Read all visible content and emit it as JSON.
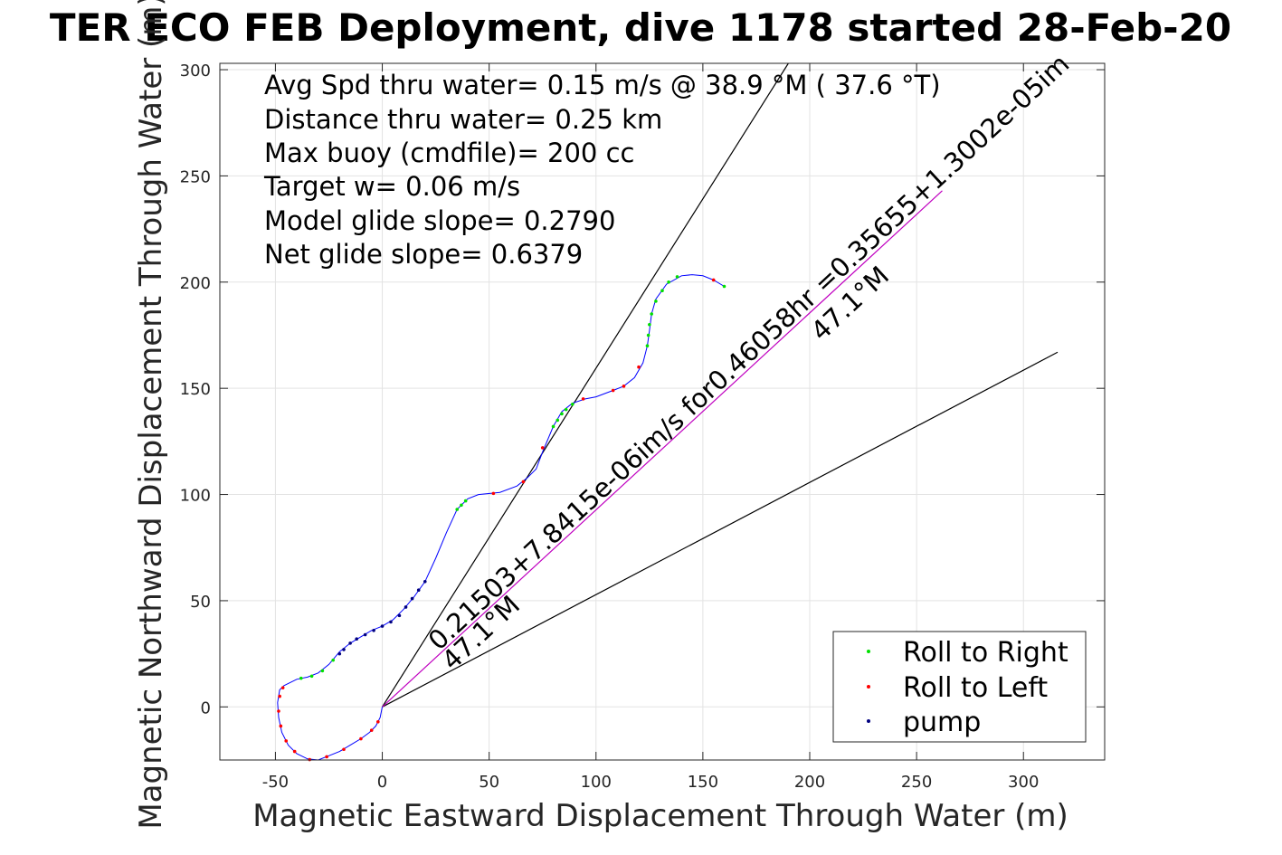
{
  "chart_data": {
    "type": "scatter",
    "title": "TER ECO FEB Deployment, dive 1178 started 28-Feb-20",
    "xlabel": "Magnetic Eastward Displacement Through Water (m)",
    "ylabel": "Magnetic Northward Displacement Through Water (m)",
    "xlim": [
      -76,
      338
    ],
    "ylim": [
      -25,
      303
    ],
    "xticks": [
      -50,
      0,
      50,
      100,
      150,
      200,
      250,
      300
    ],
    "yticks": [
      0,
      50,
      100,
      150,
      200,
      250,
      300
    ],
    "xtick_labels": [
      "-50",
      "0",
      "50",
      "100",
      "150",
      "200",
      "250",
      "300"
    ],
    "ytick_labels": [
      "0",
      "50",
      "100",
      "150",
      "200",
      "250",
      "300"
    ],
    "grid": true,
    "annotations": [
      "Avg Spd thru water=  0.15 m/s @  38.9 °M ( 37.6 °T)",
      "Distance thru water=  0.25 km",
      "Max buoy (cmdfile)= 200 cc",
      "Target w= 0.06 m/s",
      "Model glide slope= 0.2790",
      "Net glide slope= 0.6379"
    ],
    "rotated_labels": {
      "current": "0.21503+7.8415e-06im/s for0.46058hr =0.35655+1.3002e-05im",
      "heading_near": "47.1°M",
      "heading_far": "47.1°M"
    },
    "legend": {
      "location": "bottom-right",
      "entries": [
        {
          "label": "Roll to Right",
          "color": "#00e000"
        },
        {
          "label": "Roll to Left",
          "color": "#ff0000"
        },
        {
          "label": "pump",
          "color": "#000080"
        }
      ]
    },
    "track": [
      [
        0,
        0
      ],
      [
        -1,
        -5
      ],
      [
        -3,
        -9
      ],
      [
        -6,
        -12
      ],
      [
        -10,
        -15
      ],
      [
        -15,
        -18
      ],
      [
        -20,
        -21
      ],
      [
        -25,
        -23
      ],
      [
        -30,
        -25
      ],
      [
        -35,
        -24.5
      ],
      [
        -40,
        -22
      ],
      [
        -44,
        -18
      ],
      [
        -47,
        -12
      ],
      [
        -48.5,
        -5
      ],
      [
        -49,
        2
      ],
      [
        -48,
        8
      ],
      [
        -46,
        10
      ],
      [
        -40,
        13
      ],
      [
        -35,
        14
      ],
      [
        -30,
        16
      ],
      [
        -25,
        20
      ],
      [
        -20,
        26
      ],
      [
        -15,
        30
      ],
      [
        -10,
        33
      ],
      [
        -5,
        36
      ],
      [
        0,
        38
      ],
      [
        5,
        41
      ],
      [
        10,
        46
      ],
      [
        15,
        52
      ],
      [
        20,
        59
      ],
      [
        25,
        70
      ],
      [
        30,
        82
      ],
      [
        35,
        93
      ],
      [
        40,
        98
      ],
      [
        45,
        100
      ],
      [
        55,
        101
      ],
      [
        63,
        104
      ],
      [
        68,
        108
      ],
      [
        72,
        112
      ],
      [
        75,
        120
      ],
      [
        80,
        132
      ],
      [
        84,
        139
      ],
      [
        89,
        143
      ],
      [
        95,
        145
      ],
      [
        100,
        146
      ],
      [
        108,
        149
      ],
      [
        113,
        151
      ],
      [
        118,
        155
      ],
      [
        122,
        162
      ],
      [
        124,
        170
      ],
      [
        125,
        177
      ],
      [
        126,
        185
      ],
      [
        128,
        192
      ],
      [
        133,
        199
      ],
      [
        140,
        203
      ],
      [
        145,
        203.5
      ],
      [
        150,
        203
      ],
      [
        155,
        201
      ],
      [
        160,
        198
      ]
    ],
    "roll_right": [
      [
        -38,
        13.5
      ],
      [
        -33,
        14.5
      ],
      [
        -28,
        17
      ],
      [
        -23,
        22
      ],
      [
        35,
        93
      ],
      [
        37,
        95
      ],
      [
        39,
        97
      ],
      [
        80,
        132
      ],
      [
        82,
        135
      ],
      [
        84,
        138
      ],
      [
        86,
        140
      ],
      [
        89,
        142.5
      ],
      [
        124,
        170
      ],
      [
        124.5,
        175
      ],
      [
        125,
        180
      ],
      [
        126,
        185
      ],
      [
        128,
        191
      ],
      [
        131,
        196
      ],
      [
        134,
        200
      ],
      [
        138,
        202.5
      ],
      [
        160,
        198
      ]
    ],
    "roll_left": [
      [
        -2,
        -7
      ],
      [
        -5,
        -11
      ],
      [
        -10,
        -15
      ],
      [
        -18,
        -20
      ],
      [
        -26,
        -23.5
      ],
      [
        -34,
        -24.8
      ],
      [
        -41,
        -21
      ],
      [
        -45,
        -16
      ],
      [
        -47.5,
        -9
      ],
      [
        -48.5,
        -2
      ],
      [
        -48,
        5
      ],
      [
        -46.5,
        9
      ],
      [
        52,
        100.5
      ],
      [
        66,
        106
      ],
      [
        75,
        122
      ],
      [
        94,
        145
      ],
      [
        108,
        149
      ],
      [
        113,
        151
      ],
      [
        120,
        160
      ],
      [
        155,
        201
      ]
    ],
    "pump": [
      [
        -15,
        30
      ],
      [
        -12,
        32
      ],
      [
        -8,
        34
      ],
      [
        -4,
        36
      ],
      [
        0,
        38
      ],
      [
        4,
        40
      ],
      [
        8,
        43
      ],
      [
        11,
        47
      ],
      [
        14,
        51
      ],
      [
        17,
        55
      ],
      [
        20,
        59
      ],
      [
        -18,
        27
      ],
      [
        -20,
        25
      ]
    ],
    "lines": [
      {
        "name": "",
        "color": "#000000",
        "points": [
          [
            0,
            0
          ],
          [
            190,
            303
          ]
        ]
      },
      {
        "name": "",
        "color": "#000000",
        "points": [
          [
            0,
            0
          ],
          [
            316,
            167
          ]
        ]
      },
      {
        "name": "",
        "color": "#c000c0",
        "points": [
          [
            0,
            0
          ],
          [
            262,
            243
          ]
        ]
      }
    ]
  }
}
